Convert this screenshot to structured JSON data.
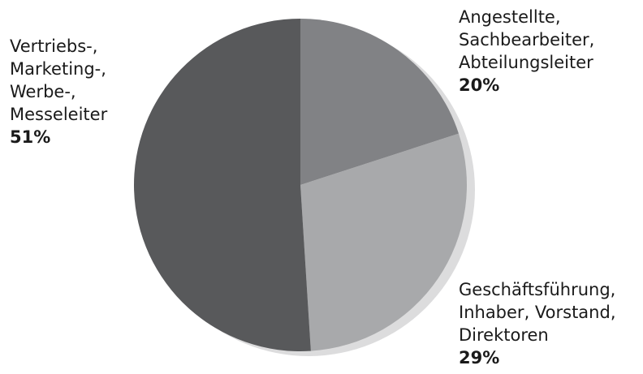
{
  "chart_data": {
    "type": "pie",
    "categories": [
      "Angestellte,\nSachbearbeiter,\nAbteilungsleiter",
      "Geschäftsführung,\nInhaber, Vorstand,\nDirektoren",
      "Vertriebs-,\nMarketing-,\nWerbe-,\nMesseleiter"
    ],
    "values": [
      20,
      29,
      51
    ],
    "value_labels": [
      "20%",
      "29%",
      "51%"
    ],
    "colors": [
      "#818285",
      "#a8a9ab",
      "#58595b"
    ]
  }
}
